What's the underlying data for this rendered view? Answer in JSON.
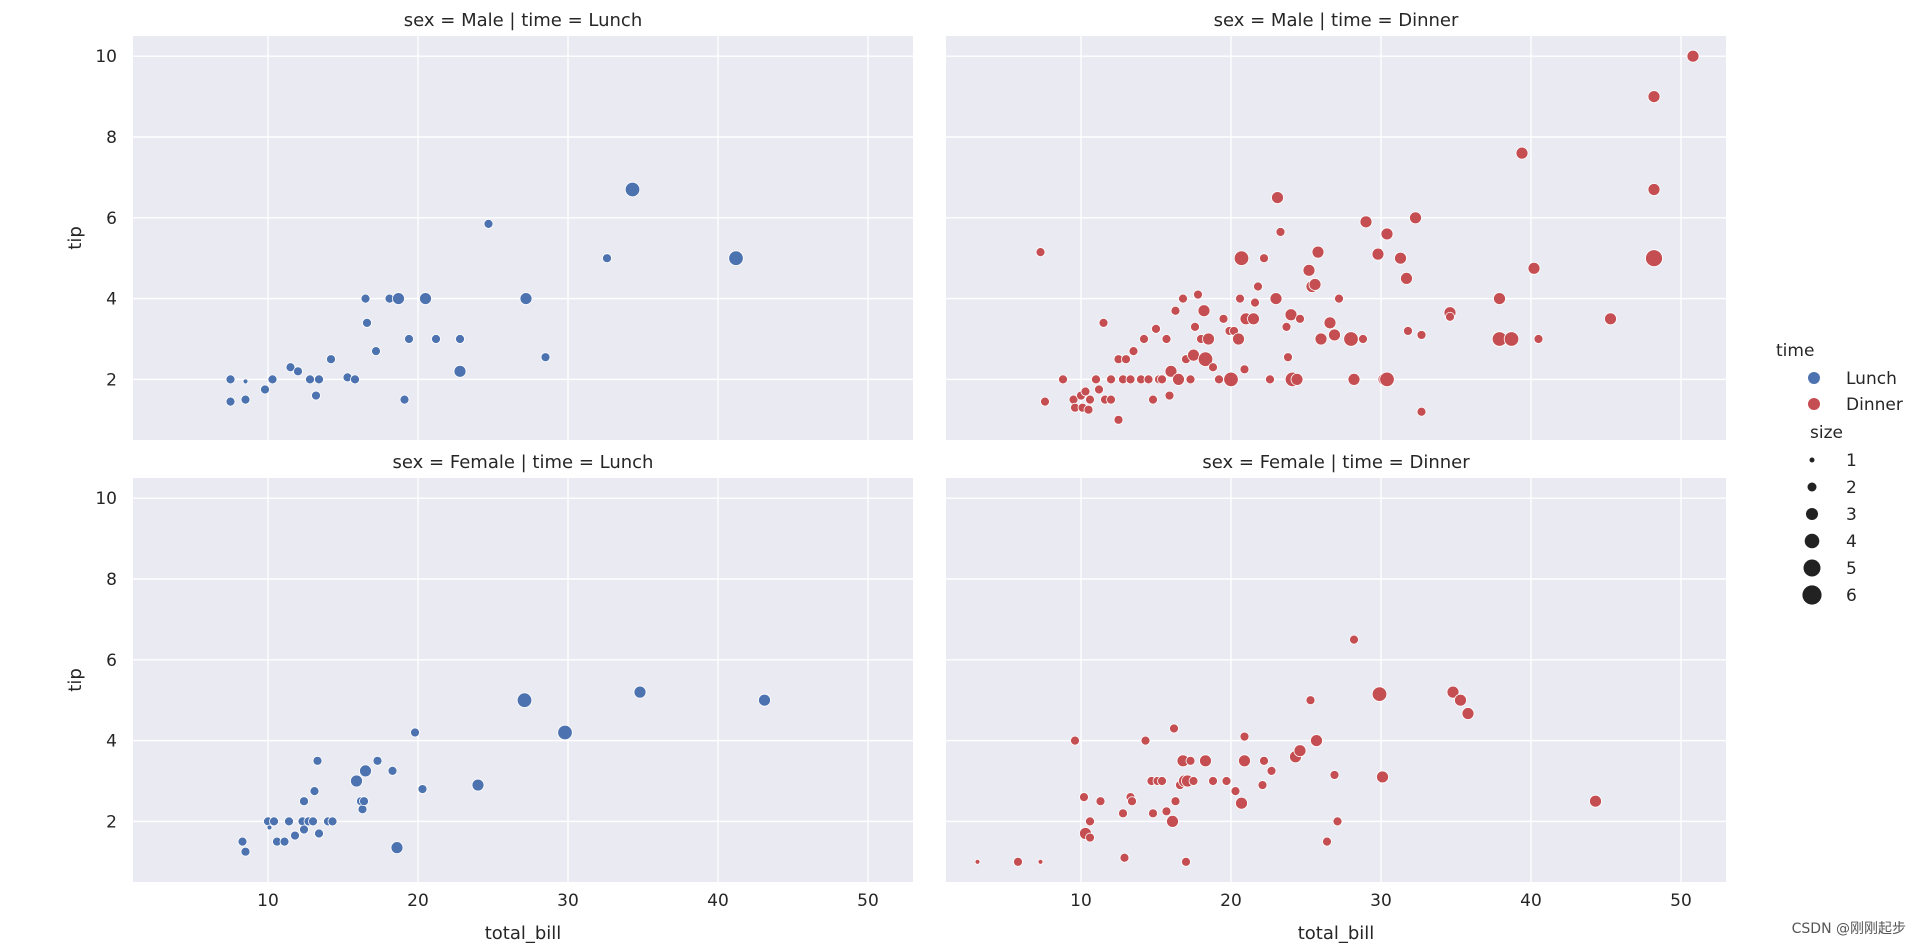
{
  "colors": {
    "Lunch": "#4c72b0",
    "Dinner": "#c44e52",
    "panel_bg": "#eaeaf2",
    "grid": "#ffffff"
  },
  "watermark": "CSDN @刚刚起步",
  "legend": {
    "hue_title": "time",
    "hue_entries": [
      "Lunch",
      "Dinner"
    ],
    "size_title": "size",
    "size_entries": [
      "1",
      "2",
      "3",
      "4",
      "5",
      "6"
    ],
    "placement": "right"
  },
  "chart_data": [
    {
      "type": "scatter",
      "title": "sex = Male | time = Lunch",
      "series_color": "Lunch",
      "xlabel": "",
      "ylabel": "tip",
      "xlim": [
        1,
        53
      ],
      "ylim": [
        0.5,
        10.5
      ],
      "xticks": [
        10,
        20,
        30,
        40,
        50
      ],
      "yticks": [
        2,
        4,
        6,
        8,
        10
      ],
      "grid": true,
      "points": [
        [
          7.5,
          2.0,
          2
        ],
        [
          7.5,
          1.45,
          2
        ],
        [
          8.5,
          1.5,
          2
        ],
        [
          8.5,
          1.95,
          1
        ],
        [
          9.8,
          1.75,
          2
        ],
        [
          10.3,
          2.0,
          2
        ],
        [
          11.5,
          2.3,
          2
        ],
        [
          12.0,
          2.2,
          2
        ],
        [
          12.8,
          2.0,
          2
        ],
        [
          13.2,
          1.6,
          2
        ],
        [
          13.4,
          2.0,
          2
        ],
        [
          14.2,
          2.5,
          2
        ],
        [
          15.3,
          2.05,
          2
        ],
        [
          15.8,
          2.0,
          2
        ],
        [
          16.5,
          4.0,
          2
        ],
        [
          16.6,
          3.4,
          2
        ],
        [
          17.2,
          2.7,
          2
        ],
        [
          18.1,
          4.0,
          2
        ],
        [
          18.7,
          4.0,
          3
        ],
        [
          19.1,
          1.5,
          2
        ],
        [
          19.4,
          3.0,
          2
        ],
        [
          20.5,
          4.0,
          3
        ],
        [
          21.2,
          3.0,
          2
        ],
        [
          22.8,
          3.0,
          2
        ],
        [
          22.8,
          2.2,
          3
        ],
        [
          24.7,
          5.85,
          2
        ],
        [
          27.2,
          4.0,
          3
        ],
        [
          28.5,
          2.55,
          2
        ],
        [
          32.6,
          5.0,
          2
        ],
        [
          34.3,
          6.7,
          4
        ],
        [
          41.2,
          5.0,
          4
        ]
      ]
    },
    {
      "type": "scatter",
      "title": "sex = Male | time = Dinner",
      "series_color": "Dinner",
      "xlabel": "",
      "ylabel": "",
      "xlim": [
        1,
        53
      ],
      "ylim": [
        0.5,
        10.5
      ],
      "xticks": [
        10,
        20,
        30,
        40,
        50
      ],
      "yticks": [
        2,
        4,
        6,
        8,
        10
      ],
      "grid": true,
      "points": [
        [
          7.3,
          5.15,
          2
        ],
        [
          7.6,
          1.45,
          2
        ],
        [
          8.8,
          2.0,
          2
        ],
        [
          9.5,
          1.5,
          2
        ],
        [
          9.6,
          1.3,
          2
        ],
        [
          10.0,
          1.6,
          2
        ],
        [
          10.1,
          1.3,
          2
        ],
        [
          10.3,
          1.7,
          2
        ],
        [
          10.5,
          1.25,
          2
        ],
        [
          10.6,
          1.5,
          2
        ],
        [
          11.0,
          2.0,
          2
        ],
        [
          11.2,
          1.75,
          2
        ],
        [
          11.5,
          3.4,
          2
        ],
        [
          11.6,
          1.5,
          2
        ],
        [
          12.0,
          1.5,
          2
        ],
        [
          12.0,
          2.0,
          2
        ],
        [
          12.5,
          2.5,
          2
        ],
        [
          12.5,
          1.0,
          2
        ],
        [
          12.8,
          2.0,
          2
        ],
        [
          13.0,
          2.5,
          2
        ],
        [
          13.3,
          2.0,
          2
        ],
        [
          13.5,
          2.7,
          2
        ],
        [
          14.0,
          2.0,
          2
        ],
        [
          14.2,
          3.0,
          2
        ],
        [
          14.5,
          2.0,
          2
        ],
        [
          14.8,
          1.5,
          2
        ],
        [
          15.0,
          3.25,
          2
        ],
        [
          15.2,
          2.0,
          2
        ],
        [
          15.4,
          2.0,
          2
        ],
        [
          15.7,
          3.0,
          2
        ],
        [
          15.9,
          1.6,
          2
        ],
        [
          16.0,
          2.2,
          3
        ],
        [
          16.3,
          3.7,
          2
        ],
        [
          16.5,
          2.0,
          3
        ],
        [
          16.8,
          4.0,
          2
        ],
        [
          17.0,
          2.5,
          2
        ],
        [
          17.3,
          2.0,
          2
        ],
        [
          17.5,
          2.6,
          3
        ],
        [
          17.6,
          3.3,
          2
        ],
        [
          17.8,
          4.1,
          2
        ],
        [
          18.0,
          3.0,
          2
        ],
        [
          18.2,
          3.7,
          3
        ],
        [
          18.3,
          2.5,
          4
        ],
        [
          18.5,
          3.0,
          3
        ],
        [
          18.8,
          2.3,
          2
        ],
        [
          19.2,
          2.0,
          2
        ],
        [
          19.5,
          3.5,
          2
        ],
        [
          19.9,
          3.2,
          2
        ],
        [
          20.0,
          2.0,
          4
        ],
        [
          20.2,
          3.2,
          2
        ],
        [
          20.5,
          3.0,
          3
        ],
        [
          20.6,
          4.0,
          2
        ],
        [
          20.7,
          5.0,
          4
        ],
        [
          20.9,
          2.25,
          2
        ],
        [
          21.0,
          3.5,
          3
        ],
        [
          21.5,
          3.5,
          3
        ],
        [
          21.6,
          3.9,
          2
        ],
        [
          21.8,
          4.3,
          2
        ],
        [
          22.2,
          5.0,
          2
        ],
        [
          22.6,
          2.0,
          2
        ],
        [
          23.0,
          4.0,
          3
        ],
        [
          23.1,
          6.5,
          3
        ],
        [
          23.3,
          5.65,
          2
        ],
        [
          23.7,
          3.3,
          2
        ],
        [
          23.8,
          2.55,
          2
        ],
        [
          24.0,
          3.6,
          3
        ],
        [
          24.1,
          2.0,
          4
        ],
        [
          24.4,
          2.0,
          3
        ],
        [
          24.6,
          3.5,
          2
        ],
        [
          25.2,
          4.7,
          3
        ],
        [
          25.4,
          4.3,
          3
        ],
        [
          25.6,
          4.35,
          3
        ],
        [
          25.8,
          5.15,
          3
        ],
        [
          26.0,
          3.0,
          3
        ],
        [
          26.6,
          3.4,
          3
        ],
        [
          26.9,
          3.1,
          3
        ],
        [
          27.2,
          4.0,
          2
        ],
        [
          28.0,
          3.0,
          4
        ],
        [
          28.2,
          2.0,
          3
        ],
        [
          28.8,
          3.0,
          2
        ],
        [
          29.0,
          5.9,
          3
        ],
        [
          29.8,
          5.1,
          3
        ],
        [
          30.2,
          2.0,
          3
        ],
        [
          30.4,
          5.6,
          3
        ],
        [
          30.4,
          2.0,
          4
        ],
        [
          31.3,
          5.0,
          3
        ],
        [
          31.7,
          4.5,
          3
        ],
        [
          31.8,
          3.2,
          2
        ],
        [
          32.3,
          6.0,
          3
        ],
        [
          32.7,
          3.1,
          2
        ],
        [
          32.7,
          1.2,
          2
        ],
        [
          34.6,
          3.65,
          3
        ],
        [
          34.6,
          3.55,
          2
        ],
        [
          37.9,
          4.0,
          3
        ],
        [
          37.9,
          3.0,
          4
        ],
        [
          38.7,
          3.0,
          4
        ],
        [
          39.4,
          7.6,
          3
        ],
        [
          40.2,
          4.75,
          3
        ],
        [
          40.5,
          3.0,
          2
        ],
        [
          45.3,
          3.5,
          3
        ],
        [
          48.2,
          9.0,
          3
        ],
        [
          48.2,
          6.7,
          3
        ],
        [
          48.2,
          5.0,
          5
        ],
        [
          50.8,
          10.0,
          3
        ]
      ]
    },
    {
      "type": "scatter",
      "title": "sex = Female | time = Lunch",
      "series_color": "Lunch",
      "xlabel": "total_bill",
      "ylabel": "tip",
      "xlim": [
        1,
        53
      ],
      "ylim": [
        0.5,
        10.5
      ],
      "xticks": [
        10,
        20,
        30,
        40,
        50
      ],
      "yticks": [
        2,
        4,
        6,
        8,
        10
      ],
      "grid": true,
      "points": [
        [
          8.3,
          1.5,
          2
        ],
        [
          8.5,
          1.25,
          2
        ],
        [
          10.0,
          2.0,
          2
        ],
        [
          10.1,
          1.85,
          1
        ],
        [
          10.4,
          2.0,
          2
        ],
        [
          10.6,
          1.5,
          2
        ],
        [
          11.1,
          1.5,
          2
        ],
        [
          11.4,
          2.0,
          2
        ],
        [
          11.8,
          1.65,
          2
        ],
        [
          12.3,
          2.0,
          2
        ],
        [
          12.4,
          1.8,
          2
        ],
        [
          12.4,
          2.5,
          2
        ],
        [
          12.7,
          2.0,
          2
        ],
        [
          13.0,
          2.0,
          2
        ],
        [
          13.1,
          2.75,
          2
        ],
        [
          13.3,
          3.5,
          2
        ],
        [
          13.4,
          1.7,
          2
        ],
        [
          14.0,
          2.0,
          2
        ],
        [
          14.3,
          2.0,
          2
        ],
        [
          15.9,
          3.0,
          3
        ],
        [
          16.2,
          2.5,
          2
        ],
        [
          16.3,
          2.3,
          2
        ],
        [
          16.4,
          2.5,
          2
        ],
        [
          16.5,
          3.25,
          3
        ],
        [
          17.3,
          3.5,
          2
        ],
        [
          18.3,
          3.25,
          2
        ],
        [
          18.6,
          1.35,
          3
        ],
        [
          19.8,
          4.2,
          2
        ],
        [
          20.3,
          2.8,
          2
        ],
        [
          24.0,
          2.9,
          3
        ],
        [
          27.1,
          5.0,
          4
        ],
        [
          29.8,
          4.2,
          4
        ],
        [
          34.8,
          5.2,
          3
        ],
        [
          43.1,
          5.0,
          3
        ]
      ]
    },
    {
      "type": "scatter",
      "title": "sex = Female | time = Dinner",
      "series_color": "Dinner",
      "xlabel": "total_bill",
      "ylabel": "",
      "xlim": [
        1,
        53
      ],
      "ylim": [
        0.5,
        10.5
      ],
      "xticks": [
        10,
        20,
        30,
        40,
        50
      ],
      "yticks": [
        2,
        4,
        6,
        8,
        10
      ],
      "grid": true,
      "points": [
        [
          3.1,
          1.0,
          1
        ],
        [
          5.8,
          1.0,
          2
        ],
        [
          7.3,
          1.0,
          1
        ],
        [
          9.6,
          4.0,
          2
        ],
        [
          10.2,
          2.6,
          2
        ],
        [
          10.3,
          1.7,
          3
        ],
        [
          10.6,
          1.6,
          2
        ],
        [
          10.6,
          2.0,
          2
        ],
        [
          11.3,
          2.5,
          2
        ],
        [
          12.8,
          2.2,
          2
        ],
        [
          12.9,
          1.1,
          2
        ],
        [
          13.3,
          2.6,
          2
        ],
        [
          13.4,
          2.5,
          2
        ],
        [
          14.3,
          4.0,
          2
        ],
        [
          14.7,
          3.0,
          2
        ],
        [
          14.8,
          2.2,
          2
        ],
        [
          15.1,
          3.0,
          2
        ],
        [
          15.4,
          3.0,
          2
        ],
        [
          15.7,
          2.25,
          2
        ],
        [
          16.1,
          2.0,
          3
        ],
        [
          16.2,
          4.3,
          2
        ],
        [
          16.3,
          2.5,
          2
        ],
        [
          16.6,
          2.9,
          2
        ],
        [
          16.8,
          3.5,
          3
        ],
        [
          16.9,
          3.0,
          3
        ],
        [
          17.0,
          1.0,
          2
        ],
        [
          17.1,
          3.0,
          3
        ],
        [
          17.3,
          3.5,
          2
        ],
        [
          17.5,
          3.0,
          2
        ],
        [
          18.3,
          3.5,
          3
        ],
        [
          18.8,
          3.0,
          2
        ],
        [
          19.7,
          3.0,
          2
        ],
        [
          20.3,
          2.75,
          2
        ],
        [
          20.7,
          2.45,
          3
        ],
        [
          20.9,
          4.1,
          2
        ],
        [
          20.9,
          3.5,
          3
        ],
        [
          22.1,
          2.9,
          2
        ],
        [
          22.2,
          3.5,
          2
        ],
        [
          22.7,
          3.25,
          2
        ],
        [
          24.3,
          3.6,
          3
        ],
        [
          24.6,
          3.75,
          3
        ],
        [
          25.3,
          5.0,
          2
        ],
        [
          25.7,
          4.0,
          3
        ],
        [
          26.4,
          1.5,
          2
        ],
        [
          26.9,
          3.15,
          2
        ],
        [
          27.1,
          2.0,
          2
        ],
        [
          28.2,
          6.5,
          2
        ],
        [
          29.9,
          5.15,
          4
        ],
        [
          30.1,
          3.1,
          3
        ],
        [
          34.8,
          5.2,
          3
        ],
        [
          35.3,
          5.0,
          3
        ],
        [
          35.8,
          4.67,
          3
        ],
        [
          44.3,
          2.5,
          3
        ]
      ]
    }
  ]
}
